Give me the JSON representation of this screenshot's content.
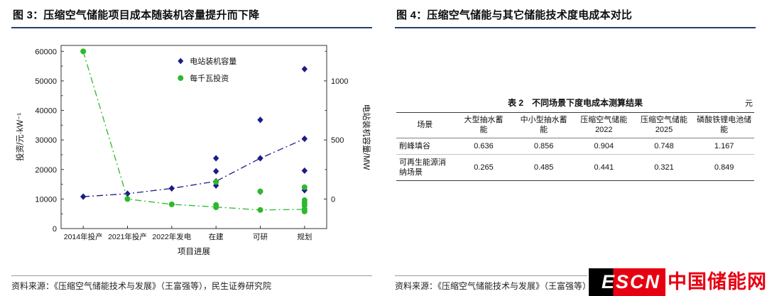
{
  "colors": {
    "navy": "#1c1c86",
    "green": "#2eb82e",
    "title_rule": "#24406e",
    "logo_red": "#e60012",
    "logo_black": "#000000"
  },
  "left_panel": {
    "title": "图 3：压缩空气储能项目成本随装机容量提升而下降",
    "source": "资料来源：《压缩空气储能技术与发展》（王富强等），民生证券研究院"
  },
  "right_panel": {
    "title": "图 4：压缩空气储能与其它储能技术度电成本对比",
    "source": "资料来源：《压缩空气储能技术与发展》（王富强等），民生证券研究院"
  },
  "logo": {
    "escn": "ESCN",
    "cn": "中国储能网"
  },
  "chart_data": [
    {
      "type": "scatter",
      "title": "",
      "categories": [
        "2014年投产",
        "2021年投产",
        "2022年发电",
        "在建",
        "可研",
        "规划"
      ],
      "xlabel": "项目进展",
      "ylabel_left": "投资/元·kW⁻¹",
      "ylabel_right": "电站装机容量/MW",
      "ylim_left": [
        0,
        62000
      ],
      "yticks_left": [
        0,
        10000,
        20000,
        30000,
        40000,
        50000,
        60000
      ],
      "right_axis": {
        "ticks": [
          0,
          500,
          1000
        ],
        "left_offset": 10000,
        "left_per_mw": 40
      },
      "grid": false,
      "legend_position": "upper-center",
      "series": [
        {
          "name": "电站装机容量",
          "axis": "right",
          "marker": "diamond",
          "line_style": "dashdot",
          "color": "#1c1c86",
          "trend": [
            20,
            45,
            90,
            150,
            345,
            510
          ],
          "points_by_category": [
            [
              20
            ],
            [
              45
            ],
            [
              90
            ],
            [
              345,
              235,
              150,
              115
            ],
            [
              670,
              345,
              62
            ],
            [
              1100,
              510,
              240,
              75
            ]
          ]
        },
        {
          "name": "每千瓦投资",
          "axis": "left",
          "marker": "circle",
          "line_style": "dashdot",
          "color": "#2eb82e",
          "trend": [
            60000,
            10000,
            8200,
            7300,
            6300,
            6500
          ],
          "points_by_category": [
            [
              60000
            ],
            [
              10000
            ],
            [
              8200
            ],
            [
              15800,
              8000,
              7200
            ],
            [
              12600,
              6300
            ],
            [
              14000,
              9600,
              8700,
              7800,
              6500,
              5800
            ]
          ]
        }
      ]
    },
    {
      "type": "table",
      "caption": "表 2　不同场景下度电成本测算结果",
      "unit": "元",
      "columns": [
        "场景",
        "大型抽水蓄\n能",
        "中小型抽水蓄\n能",
        "压缩空气储能\n2022",
        "压缩空气储能\n2025",
        "磷酸铁锂电池储\n能"
      ],
      "rows": [
        {
          "scenario": "削峰填谷",
          "values": [
            "0.636",
            "0.856",
            "0.904",
            "0.748",
            "1.167"
          ]
        },
        {
          "scenario": "可再生能源消\n纳场景",
          "values": [
            "0.265",
            "0.485",
            "0.441",
            "0.321",
            "0.849"
          ]
        }
      ]
    }
  ]
}
